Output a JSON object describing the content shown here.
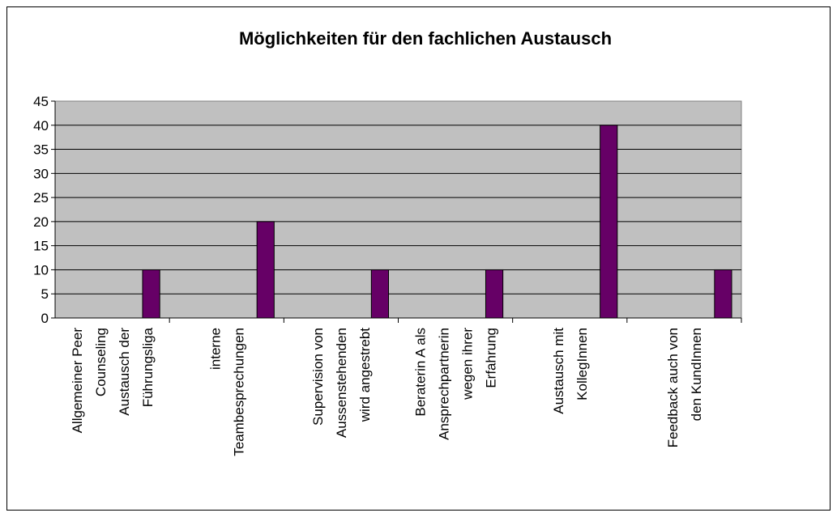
{
  "chart_data": {
    "type": "bar",
    "title": "Möglichkeiten für den fachlichen Austausch",
    "categories": [
      "Allgemeiner Peer Counseling Austausch der Führungsliga",
      "interne Teambesprechungen",
      "Supervision von Aussenstehenden wird angestrebt",
      "Beraterin A als Ansprechpartnerin wegen ihrer Erfahrung",
      "Austausch mit KollegInnen",
      "Feedback auch von den KundInnen"
    ],
    "values": [
      10,
      20,
      10,
      10,
      40,
      10
    ],
    "color": "#660066",
    "ylim": [
      0,
      45
    ],
    "yticks": [
      0,
      5,
      10,
      15,
      20,
      25,
      30,
      35,
      40,
      45
    ],
    "grid": true
  }
}
